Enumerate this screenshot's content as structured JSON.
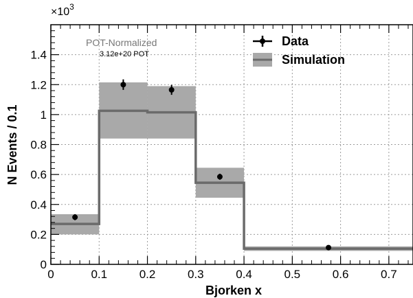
{
  "chart_data": {
    "type": "histogram",
    "title": "",
    "xlabel": "Bjorken x",
    "ylabel": "N Events / 0.1",
    "y_multiplier_label": "×10",
    "y_multiplier_exp": "3",
    "xlim": [
      0,
      0.75
    ],
    "ylim": [
      0,
      1.6
    ],
    "grid": true,
    "legend_position": "top-right",
    "x_ticks": [
      {
        "value": 0,
        "label": "0"
      },
      {
        "value": 0.1,
        "label": "0.1"
      },
      {
        "value": 0.2,
        "label": "0.2"
      },
      {
        "value": 0.3,
        "label": "0.3"
      },
      {
        "value": 0.4,
        "label": "0.4"
      },
      {
        "value": 0.5,
        "label": "0.5"
      },
      {
        "value": 0.6,
        "label": "0.6"
      },
      {
        "value": 0.7,
        "label": "0.7"
      }
    ],
    "y_ticks": [
      {
        "value": 0,
        "label": "0"
      },
      {
        "value": 0.2,
        "label": "0.2"
      },
      {
        "value": 0.4,
        "label": "0.4"
      },
      {
        "value": 0.6,
        "label": "0.6"
      },
      {
        "value": 0.8,
        "label": "0.8"
      },
      {
        "value": 1.0,
        "label": "1"
      },
      {
        "value": 1.2,
        "label": "1.2"
      },
      {
        "value": 1.4,
        "label": "1.4"
      }
    ],
    "bin_edges": [
      0,
      0.1,
      0.2,
      0.3,
      0.4,
      0.75
    ],
    "series": [
      {
        "name": "Simulation",
        "kind": "step_with_band",
        "color": "#6b6b6b",
        "band_color": "#a9a9a9",
        "values": [
          0.27,
          1.025,
          1.015,
          0.545,
          0.105
        ],
        "band_low": [
          0.2,
          0.84,
          0.84,
          0.445,
          0.09
        ],
        "band_high": [
          0.335,
          1.215,
          1.19,
          0.645,
          0.12
        ]
      },
      {
        "name": "Data",
        "kind": "points",
        "color": "#000000",
        "x": [
          0.05,
          0.15,
          0.25,
          0.35,
          0.575
        ],
        "y": [
          0.315,
          1.2,
          1.165,
          0.585,
          0.112
        ],
        "yerr": [
          0.02,
          0.035,
          0.033,
          0.02,
          0.01
        ]
      }
    ],
    "annotations": [
      {
        "text": "POT-Normalized",
        "style": "title"
      },
      {
        "text": "3.12e+20 POT",
        "style": "sub"
      }
    ]
  }
}
